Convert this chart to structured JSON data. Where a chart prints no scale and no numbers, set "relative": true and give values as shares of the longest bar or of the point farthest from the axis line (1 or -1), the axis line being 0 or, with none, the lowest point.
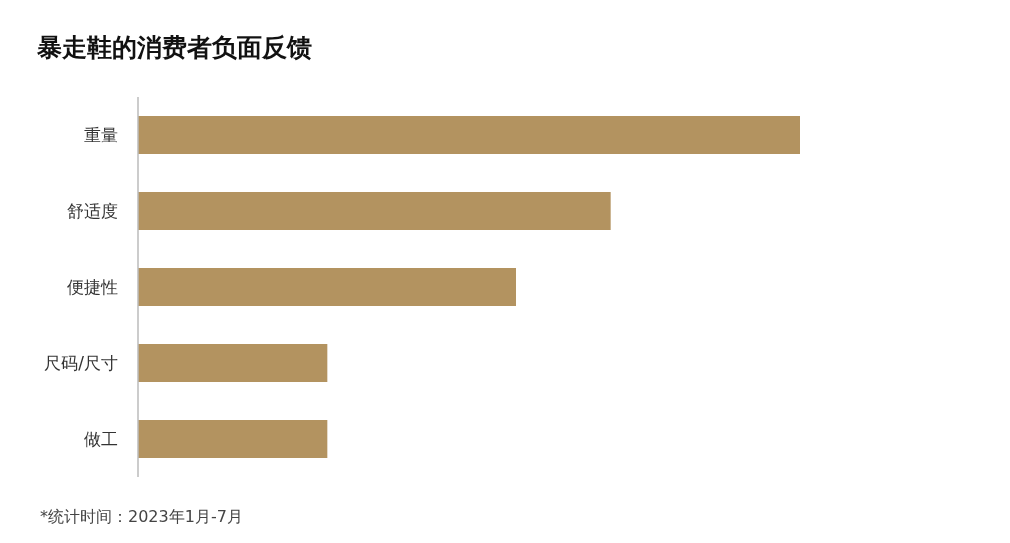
{
  "chart_data": {
    "type": "bar",
    "orientation": "horizontal",
    "relative": true,
    "title": "暴走鞋的消费者负面反馈",
    "categories": [
      "重量",
      "舒适度",
      "便捷性",
      "尺码/尺寸",
      "做工"
    ],
    "values": [
      1,
      0.714,
      0.571,
      0.286,
      0.286
    ],
    "color": "#b39360",
    "annotations": [
      "*统计时间：2023年1月-7月"
    ]
  }
}
